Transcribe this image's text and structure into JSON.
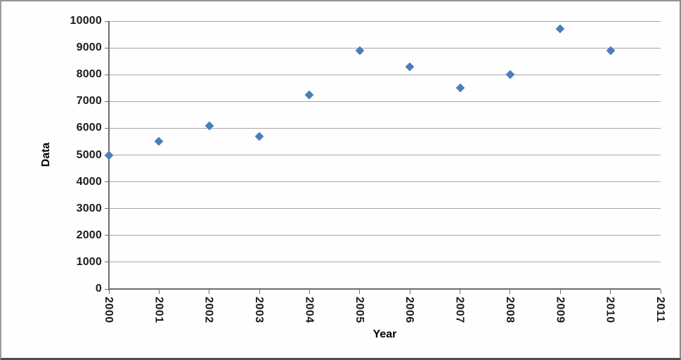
{
  "chart_data": {
    "type": "scatter",
    "title": "",
    "xlabel": "Year",
    "ylabel": "Data",
    "x": [
      2000,
      2001,
      2002,
      2003,
      2004,
      2005,
      2006,
      2007,
      2008,
      2009,
      2010
    ],
    "values": [
      5000,
      5500,
      6100,
      5700,
      7250,
      8900,
      8300,
      7500,
      8000,
      9700,
      8900
    ],
    "xticks": [
      2000,
      2001,
      2002,
      2003,
      2004,
      2005,
      2006,
      2007,
      2008,
      2009,
      2010,
      2011
    ],
    "yticks": [
      0,
      1000,
      2000,
      3000,
      4000,
      5000,
      6000,
      7000,
      8000,
      9000,
      10000
    ],
    "xlim": [
      2000,
      2011
    ],
    "ylim": [
      0,
      10000
    ],
    "grid": "horizontal",
    "legend": "none",
    "marker": {
      "shape": "diamond",
      "color": "#4A7EBB"
    },
    "colors": {
      "gridline": "#A6A6A6",
      "axis": "#6B6B6B",
      "text": "#1C1C1C",
      "background": "#FEFEFE"
    }
  }
}
